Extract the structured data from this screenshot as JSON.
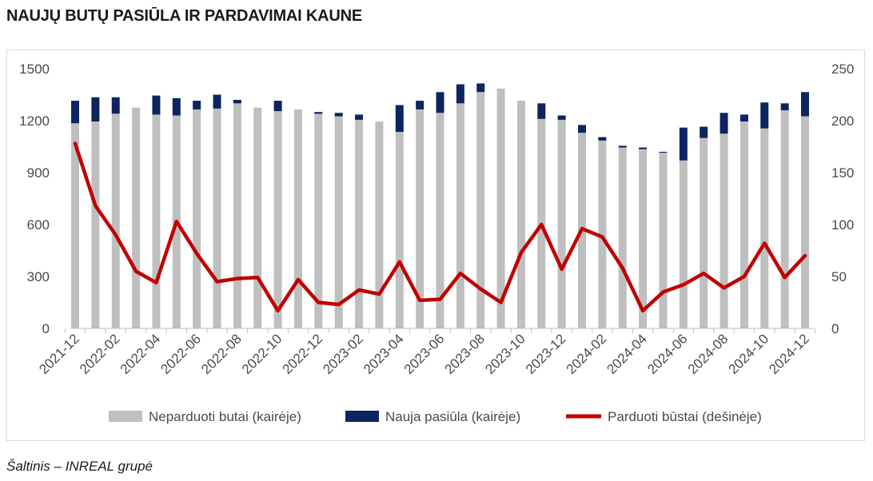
{
  "title": "NAUJŲ BUTŲ PASIŪLA IR PARDAVIMAI KAUNE",
  "source": "Šaltinis – INREAL grupė",
  "colors": {
    "unsold": "#bfbfbf",
    "new_supply": "#0c2560",
    "sold": "#c00000"
  },
  "chart_data": {
    "type": "bar",
    "stacked": true,
    "categories": [
      "2021-12",
      "2022-01",
      "2022-02",
      "2022-03",
      "2022-04",
      "2022-05",
      "2022-06",
      "2022-07",
      "2022-08",
      "2022-09",
      "2022-10",
      "2022-11",
      "2022-12",
      "2023-01",
      "2023-02",
      "2023-03",
      "2023-04",
      "2023-05",
      "2023-06",
      "2023-07",
      "2023-08",
      "2023-09",
      "2023-10",
      "2023-11",
      "2023-12",
      "2024-01",
      "2024-02",
      "2024-03",
      "2024-04",
      "2024-05",
      "2024-06",
      "2024-07",
      "2024-08",
      "2024-09",
      "2024-10",
      "2024-11",
      "2024-12"
    ],
    "x_tick_labels": [
      "2021-12",
      "2022-02",
      "2022-04",
      "2022-06",
      "2022-08",
      "2022-10",
      "2022-12",
      "2023-02",
      "2023-04",
      "2023-06",
      "2023-08",
      "2023-10",
      "2023-12",
      "2024-02",
      "2024-04",
      "2024-06",
      "2024-08",
      "2024-10",
      "2024-12"
    ],
    "series": [
      {
        "name": "Neparduoti butai (kairėje)",
        "axis": "left",
        "kind": "bar",
        "values": [
          1185,
          1195,
          1240,
          1275,
          1235,
          1230,
          1265,
          1270,
          1300,
          1275,
          1255,
          1265,
          1240,
          1225,
          1205,
          1195,
          1135,
          1265,
          1245,
          1300,
          1365,
          1385,
          1315,
          1210,
          1205,
          1130,
          1085,
          1045,
          1035,
          1015,
          970,
          1100,
          1125,
          1195,
          1155,
          1260,
          1225
        ]
      },
      {
        "name": "Nauja pasiūla (kairėje)",
        "axis": "left",
        "kind": "bar",
        "values": [
          130,
          140,
          95,
          0,
          110,
          100,
          50,
          80,
          20,
          0,
          60,
          0,
          10,
          20,
          30,
          0,
          155,
          50,
          120,
          110,
          50,
          0,
          0,
          90,
          25,
          45,
          20,
          10,
          10,
          5,
          190,
          65,
          120,
          40,
          150,
          40,
          140
        ]
      },
      {
        "name": "Parduoti būstai (dešinėje)",
        "axis": "right",
        "kind": "line",
        "values": [
          178,
          118,
          90,
          55,
          44,
          103,
          72,
          45,
          48,
          49,
          17,
          47,
          25,
          23,
          37,
          33,
          64,
          27,
          28,
          53,
          38,
          25,
          73,
          100,
          57,
          96,
          88,
          58,
          17,
          35,
          42,
          53,
          39,
          50,
          82,
          49,
          70
        ]
      }
    ],
    "y_left": {
      "ticks": [
        "0",
        "300",
        "600",
        "900",
        "1200",
        "1500"
      ],
      "ylim": [
        0,
        1500
      ]
    },
    "y_right": {
      "ticks": [
        "0",
        "50",
        "100",
        "150",
        "200",
        "250"
      ],
      "ylim": [
        0,
        250
      ]
    },
    "legend_position": "bottom",
    "grid": false
  }
}
